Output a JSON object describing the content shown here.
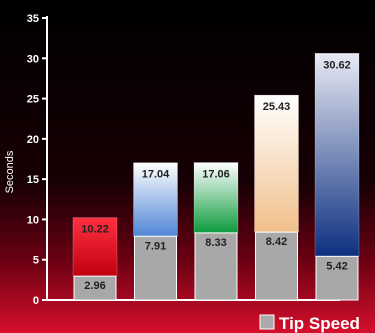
{
  "chart_data": {
    "type": "bar",
    "stacked": true,
    "ylabel": "Seconds",
    "ylim": [
      0,
      35
    ],
    "yticks": [
      0,
      5,
      10,
      15,
      20,
      25,
      30,
      35
    ],
    "grid": false,
    "bars": [
      {
        "bottom": 2.96,
        "top": 10.22,
        "top_colors": [
          "#ff3040",
          "#c00010"
        ]
      },
      {
        "bottom": 7.91,
        "top": 17.04,
        "top_colors": [
          "#ffffff",
          "#4f86d6"
        ]
      },
      {
        "bottom": 8.33,
        "top": 17.06,
        "top_colors": [
          "#ffffff",
          "#0c9a3c"
        ]
      },
      {
        "bottom": 8.42,
        "top": 25.43,
        "top_colors": [
          "#ffffff",
          "#f1c08a"
        ]
      },
      {
        "bottom": 5.42,
        "top": 30.62,
        "top_colors": [
          "#e8eaf4",
          "#0c2f7f"
        ]
      }
    ],
    "legend": {
      "label": "Tip Speed",
      "color": "#aaaaaa",
      "position": "bottom-right"
    }
  }
}
